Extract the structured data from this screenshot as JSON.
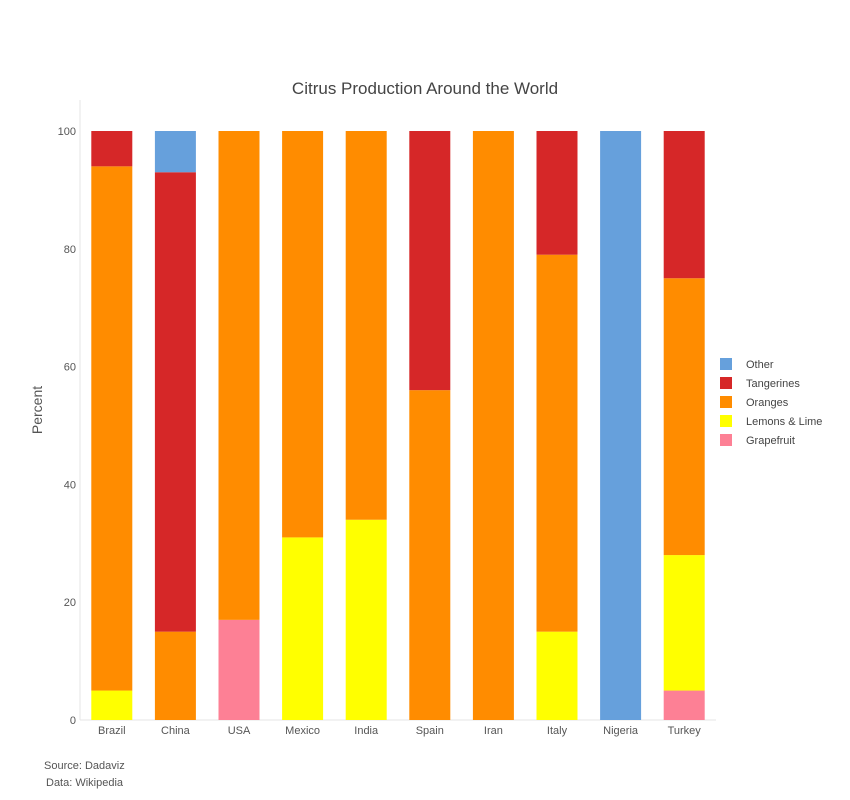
{
  "chart_data": {
    "type": "bar",
    "stacked": true,
    "title": "Citrus Production Around the World",
    "xlabel": "",
    "ylabel": "Percent",
    "ylim": [
      0,
      100
    ],
    "yticks": [
      0,
      20,
      40,
      60,
      80,
      100
    ],
    "grid": false,
    "legend_placement": "right",
    "categories": [
      "Brazil",
      "China",
      "USA",
      "Mexico",
      "India",
      "Spain",
      "Iran",
      "Italy",
      "Nigeria",
      "Turkey"
    ],
    "series": [
      {
        "name": "Grapefruit",
        "color": "#fd8095",
        "values": [
          0,
          0,
          17,
          0,
          0,
          0,
          0,
          0,
          0,
          5
        ]
      },
      {
        "name": "Lemons & Lime",
        "color": "#ffff00",
        "values": [
          5,
          0,
          0,
          31,
          34,
          0,
          0,
          15,
          0,
          23
        ]
      },
      {
        "name": "Oranges",
        "color": "#ff8c00",
        "values": [
          89,
          15,
          83,
          69,
          66,
          56,
          100,
          64,
          0,
          47
        ]
      },
      {
        "name": "Tangerines",
        "color": "#d62728",
        "values": [
          6,
          78,
          0,
          0,
          0,
          44,
          0,
          21,
          0,
          25
        ]
      },
      {
        "name": "Other",
        "color": "#66a0dc",
        "values": [
          0,
          7,
          0,
          0,
          0,
          0,
          0,
          0,
          100,
          0
        ]
      }
    ],
    "legend_order": [
      "Other",
      "Tangerines",
      "Oranges",
      "Lemons & Lime",
      "Grapefruit"
    ]
  },
  "footer": {
    "source": "Source: Dadaviz",
    "data": "Data: Wikipedia"
  }
}
